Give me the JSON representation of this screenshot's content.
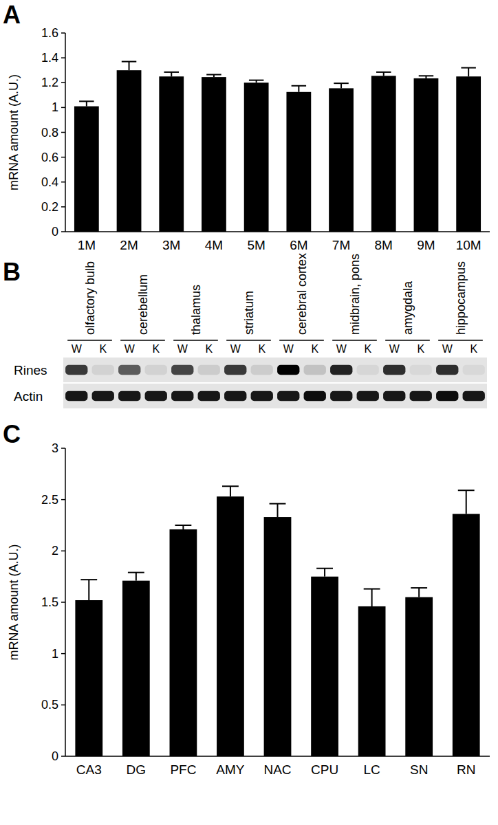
{
  "chart_data": [
    {
      "type": "bar",
      "panel": "A",
      "ylabel": "mRNA amount (A.U.)",
      "categories": [
        "1M",
        "2M",
        "3M",
        "4M",
        "5M",
        "6M",
        "7M",
        "8M",
        "9M",
        "10M"
      ],
      "values": [
        1.01,
        1.3,
        1.25,
        1.245,
        1.2,
        1.125,
        1.155,
        1.255,
        1.235,
        1.25
      ],
      "errors": [
        0.04,
        0.07,
        0.035,
        0.02,
        0.02,
        0.05,
        0.04,
        0.03,
        0.02,
        0.07
      ],
      "color": "#000000",
      "ylim": [
        0,
        1.6
      ],
      "yticks": [
        0,
        0.2,
        0.4,
        0.6,
        0.8,
        1,
        1.2,
        1.4,
        1.6
      ],
      "grid": false
    },
    {
      "type": "blot",
      "panel": "B",
      "categories": [
        "olfactory bulb",
        "cerebellum",
        "thalamus",
        "striatum",
        "cerebral cortex",
        "midbrain, pons",
        "amygdala",
        "hippocampus"
      ],
      "lanes": [
        "W",
        "K"
      ],
      "series": [
        {
          "name": "Rines",
          "values": [
            [
              0.75,
              0.08
            ],
            [
              0.6,
              0.08
            ],
            [
              0.7,
              0.1
            ],
            [
              0.75,
              0.1
            ],
            [
              1.0,
              0.15
            ],
            [
              0.85,
              0.06
            ],
            [
              0.8,
              0.05
            ],
            [
              0.8,
              0.05
            ]
          ]
        },
        {
          "name": "Actin",
          "values": [
            [
              0.9,
              0.9
            ],
            [
              0.9,
              0.9
            ],
            [
              0.9,
              0.9
            ],
            [
              0.9,
              0.9
            ],
            [
              0.9,
              0.95
            ],
            [
              0.9,
              0.9
            ],
            [
              0.9,
              0.9
            ],
            [
              0.95,
              0.9
            ]
          ]
        }
      ]
    },
    {
      "type": "bar",
      "panel": "C",
      "ylabel": "mRNA amount (A.U.)",
      "categories": [
        "CA3",
        "DG",
        "PFC",
        "AMY",
        "NAC",
        "CPU",
        "LC",
        "SN",
        "RN"
      ],
      "values": [
        1.52,
        1.71,
        2.21,
        2.53,
        2.33,
        1.75,
        1.46,
        1.55,
        2.36
      ],
      "errors": [
        0.2,
        0.08,
        0.04,
        0.1,
        0.13,
        0.08,
        0.17,
        0.09,
        0.23
      ],
      "color": "#000000",
      "ylim": [
        0,
        3
      ],
      "yticks": [
        0,
        0.5,
        1,
        1.5,
        2,
        2.5,
        3
      ],
      "grid": false
    }
  ]
}
